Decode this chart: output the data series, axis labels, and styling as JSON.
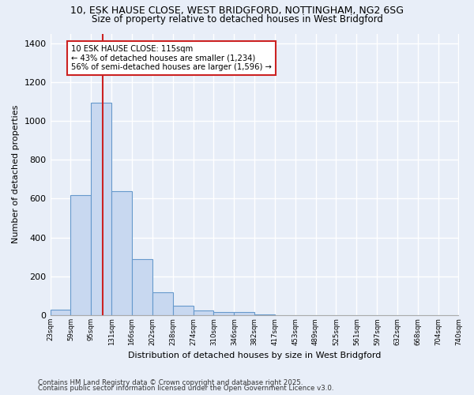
{
  "title1": "10, ESK HAUSE CLOSE, WEST BRIDGFORD, NOTTINGHAM, NG2 6SG",
  "title2": "Size of property relative to detached houses in West Bridgford",
  "xlabel": "Distribution of detached houses by size in West Bridgford",
  "ylabel": "Number of detached properties",
  "bar_values": [
    30,
    620,
    1095,
    640,
    290,
    120,
    50,
    25,
    15,
    15,
    5,
    0,
    0,
    0,
    0,
    0,
    0,
    0,
    0,
    0
  ],
  "bin_edges": [
    23,
    59,
    95,
    131,
    166,
    202,
    238,
    274,
    310,
    346,
    382,
    417,
    453,
    489,
    525,
    561,
    597,
    632,
    668,
    704,
    740
  ],
  "tick_labels": [
    "23sqm",
    "59sqm",
    "95sqm",
    "131sqm",
    "166sqm",
    "202sqm",
    "238sqm",
    "274sqm",
    "310sqm",
    "346sqm",
    "382sqm",
    "417sqm",
    "453sqm",
    "489sqm",
    "525sqm",
    "561sqm",
    "597sqm",
    "632sqm",
    "668sqm",
    "704sqm",
    "740sqm"
  ],
  "bar_color": "#c8d8f0",
  "bar_edge_color": "#6699cc",
  "vline_x": 115,
  "vline_color": "#cc2222",
  "annotation_text": "10 ESK HAUSE CLOSE: 115sqm\n← 43% of detached houses are smaller (1,234)\n56% of semi-detached houses are larger (1,596) →",
  "annotation_box_color": "#ffffff",
  "annotation_box_edge": "#cc2222",
  "ylim": [
    0,
    1450
  ],
  "yticks": [
    0,
    200,
    400,
    600,
    800,
    1000,
    1200,
    1400
  ],
  "background_color": "#e8eef8",
  "plot_bg_color": "#e8eef8",
  "grid_color": "#ffffff",
  "footer1": "Contains HM Land Registry data © Crown copyright and database right 2025.",
  "footer2": "Contains public sector information licensed under the Open Government Licence v3.0."
}
